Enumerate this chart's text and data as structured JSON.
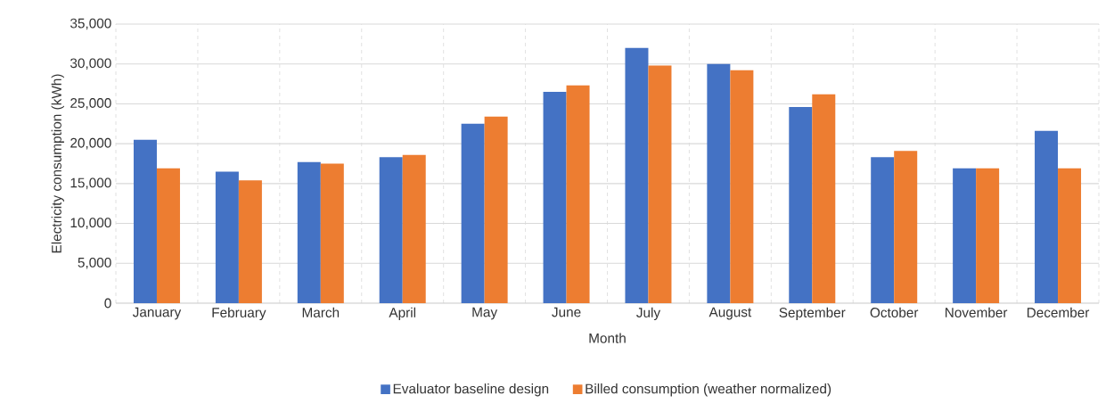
{
  "chart_data": {
    "type": "bar",
    "xlabel": "Month",
    "ylabel": "Electricity consumption  (kWh)",
    "categories": [
      "January",
      "February",
      "March",
      "April",
      "May",
      "June",
      "July",
      "August",
      "September",
      "October",
      "November",
      "December"
    ],
    "series": [
      {
        "name": "Evaluator baseline design",
        "color": "#4472c4",
        "values": [
          20500,
          16500,
          17700,
          18300,
          22500,
          26500,
          32000,
          30000,
          24600,
          18300,
          16900,
          21600
        ]
      },
      {
        "name": "Billed consumption (weather normalized)",
        "color": "#ed7d31",
        "values": [
          16900,
          15400,
          17500,
          18600,
          23400,
          27300,
          29800,
          29200,
          26200,
          19100,
          16900,
          16900
        ]
      }
    ],
    "ylim": [
      0,
      35000
    ],
    "yticks": [
      {
        "value": 0,
        "label": "0"
      },
      {
        "value": 5000,
        "label": "5,000"
      },
      {
        "value": 10000,
        "label": "10,000"
      },
      {
        "value": 15000,
        "label": "15,000"
      },
      {
        "value": 20000,
        "label": "20,000"
      },
      {
        "value": 25000,
        "label": "25,000"
      },
      {
        "value": 30000,
        "label": "30,000"
      },
      {
        "value": 35000,
        "label": "35,000"
      }
    ],
    "grid": true,
    "legend": "bottom"
  }
}
